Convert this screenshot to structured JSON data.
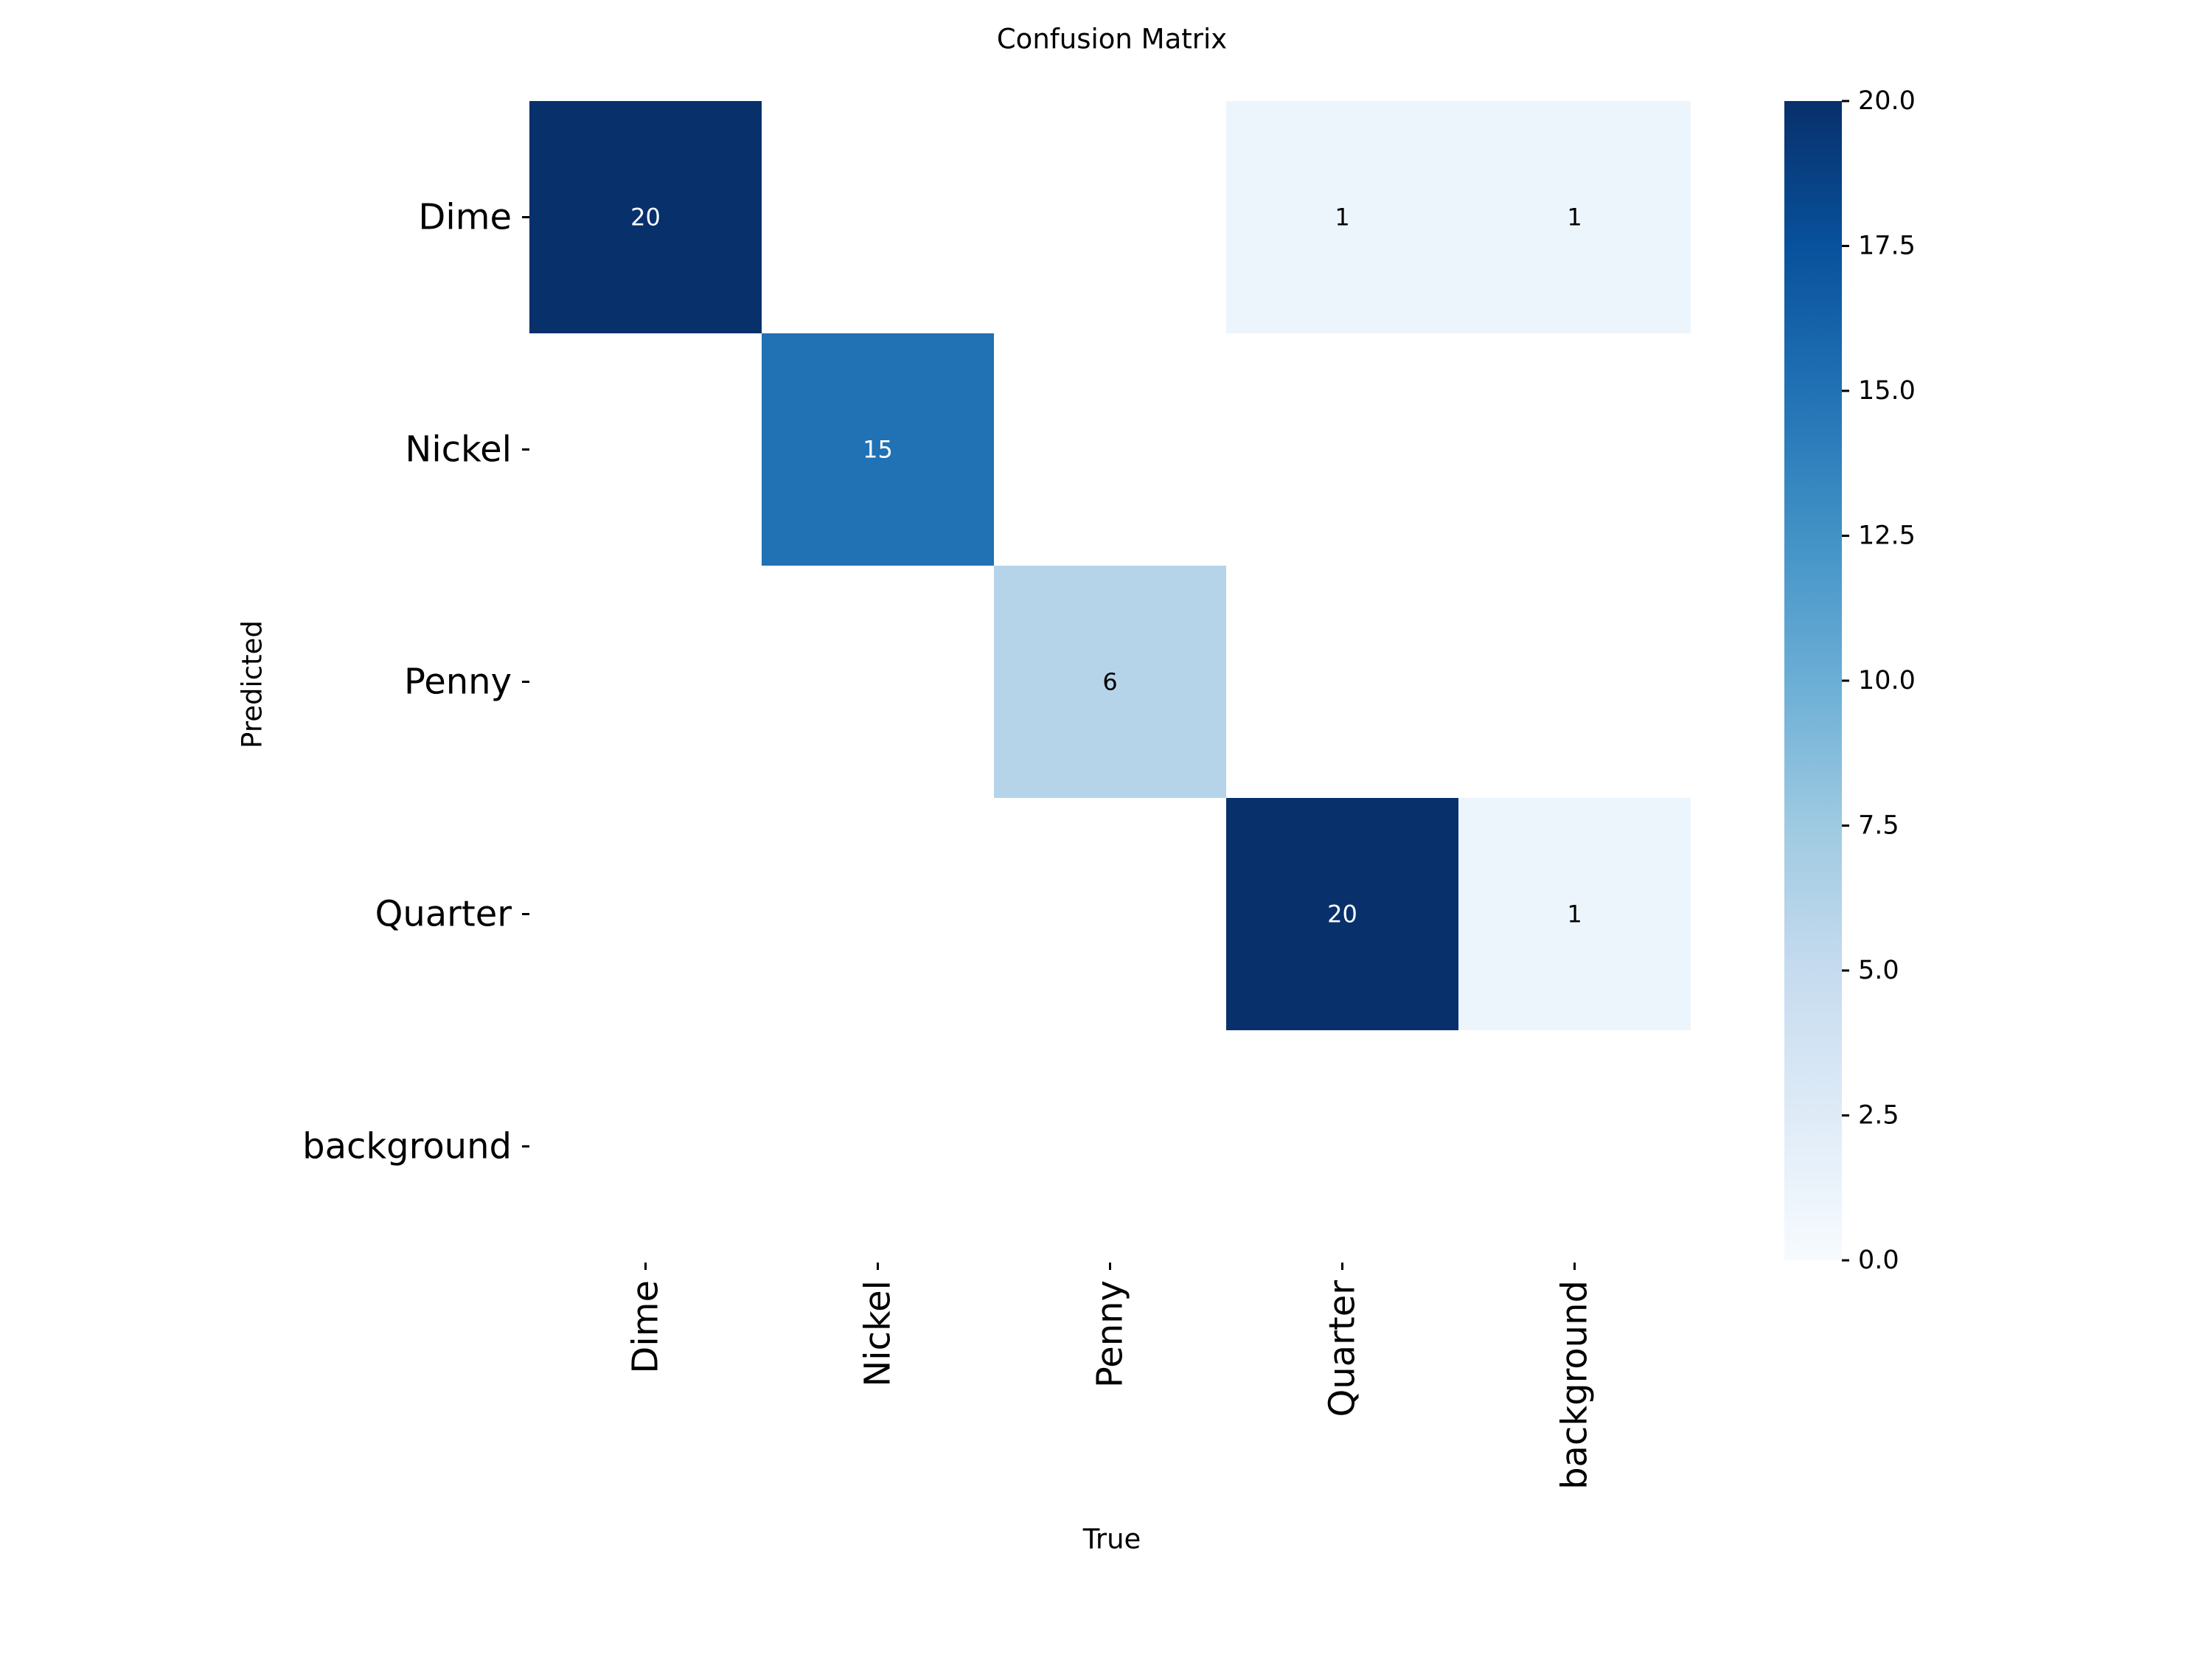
{
  "chart_data": {
    "type": "heatmap",
    "title": "Confusion Matrix",
    "xlabel": "True",
    "ylabel": "Predicted",
    "x_categories": [
      "Dime",
      "Nickel",
      "Penny",
      "Quarter",
      "background"
    ],
    "y_categories": [
      "Dime",
      "Nickel",
      "Penny",
      "Quarter",
      "background"
    ],
    "matrix": [
      [
        20,
        null,
        null,
        1,
        1
      ],
      [
        null,
        15,
        null,
        null,
        null
      ],
      [
        null,
        null,
        6,
        null,
        null
      ],
      [
        null,
        null,
        null,
        20,
        1
      ],
      [
        null,
        null,
        null,
        null,
        null
      ]
    ],
    "colorscale": "Blues",
    "vmin": 0,
    "vmax": 20,
    "colorbar": {
      "ticks": [
        0.0,
        2.5,
        5.0,
        7.5,
        10.0,
        12.5,
        15.0,
        17.5,
        20.0
      ],
      "tick_labels": [
        "0.0",
        "2.5",
        "5.0",
        "7.5",
        "10.0",
        "12.5",
        "15.0",
        "17.5",
        "20.0"
      ],
      "placement": "right"
    },
    "grid": false
  }
}
